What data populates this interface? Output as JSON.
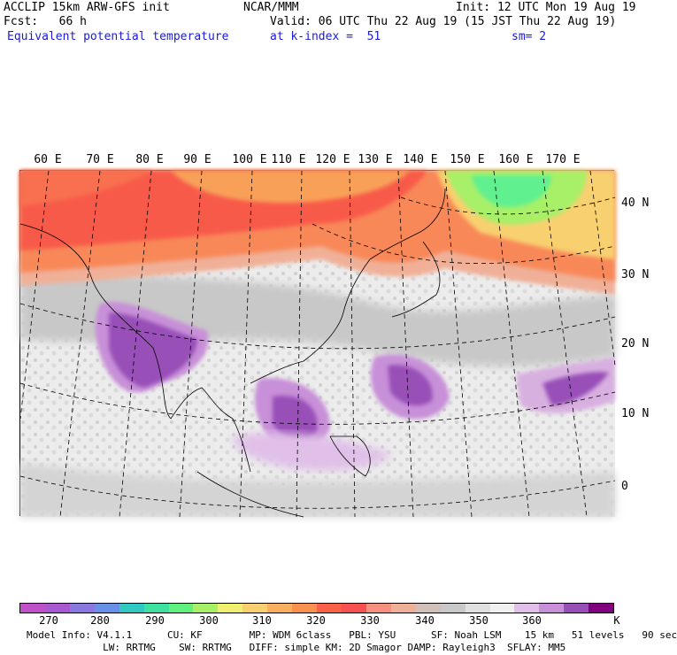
{
  "header": {
    "line1_left": "ACCLIP 15km ARW-GFS init",
    "line1_mid": "NCAR/MMM",
    "line1_right": "Init: 12 UTC Mon 19 Aug 19",
    "line2_left": "Fcst:   66 h",
    "line2_right": "Valid: 06 UTC Thu 22 Aug 19 (15 JST Thu 22 Aug 19)",
    "line3_left": "Equivalent potential temperature",
    "line3_mid": "at k-index =  51",
    "line3_right": "sm= 2"
  },
  "map": {
    "lon_labels": [
      "60 E",
      "70 E",
      "80 E",
      "90 E",
      "100 E",
      "110 E",
      "120 E",
      "130 E",
      "140 E",
      "150 E",
      "160 E",
      "170 E"
    ],
    "lat_labels": [
      "40 N",
      "30 N",
      "20 N",
      "10 N",
      "0"
    ]
  },
  "colorbar": {
    "colors": [
      "#c050c8",
      "#a858d0",
      "#8878e0",
      "#6890e8",
      "#30c8c0",
      "#40e0a0",
      "#60f080",
      "#a8f068",
      "#f0f070",
      "#f8d070",
      "#f8b060",
      "#f89050",
      "#f86048",
      "#f85050",
      "#f89080",
      "#f0b098",
      "#d0c0b8",
      "#c8c8c8",
      "#e0e0e0",
      "#f0f0f0",
      "#e0c0e8",
      "#c890d8",
      "#9850b8",
      "#800080"
    ],
    "ticks": [
      "270",
      "280",
      "290",
      "300",
      "310",
      "320",
      "330",
      "340",
      "350",
      "360"
    ],
    "unit": "K"
  },
  "footer": {
    "line1": "Model Info: V4.1.1      CU: KF        MP: WDM 6class   PBL: YSU      SF: Noah LSM    15 km   51 levels   90 sec",
    "line2": "             LW: RRTMG    SW: RRTMG   DIFF: simple KM: 2D Smagor DAMP: Rayleigh3  SFLAY: MM5"
  }
}
